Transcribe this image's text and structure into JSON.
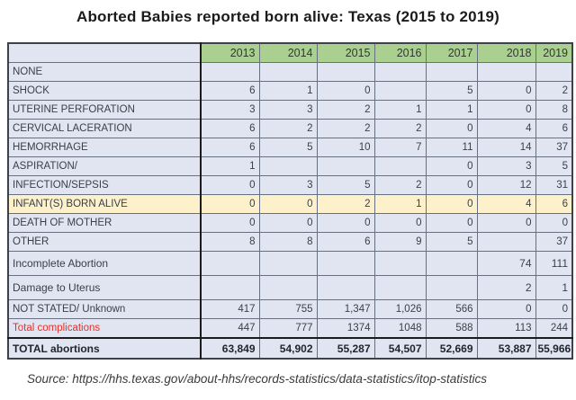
{
  "title": "Aborted Babies reported born alive: Texas (2015 to 2019)",
  "source_line": "Source: https://hhs.texas.gov/about-hhs/records-statistics/data-statistics/itop-statistics",
  "colors": {
    "header_green": "#A9D08E",
    "row_lavender": "#E0E5F1",
    "highlight_cream": "#FCF1CB",
    "red_text": "#E8302A",
    "border_dark": "#1C1C1C",
    "cell_border": "#667080"
  },
  "chart_data": {
    "type": "table",
    "title": "Aborted Babies reported born alive: Texas (2015 to 2019)",
    "columns": [
      "",
      "2013",
      "2014",
      "2015",
      "2016",
      "2017",
      "2018",
      "2019"
    ],
    "rows": [
      {
        "label": "NONE",
        "values": [
          "",
          "",
          "",
          "",
          "",
          "",
          ""
        ],
        "style": ""
      },
      {
        "label": "SHOCK",
        "values": [
          "6",
          "1",
          "0",
          "",
          "5",
          "0",
          "2"
        ],
        "style": ""
      },
      {
        "label": "UTERINE PERFORATION",
        "values": [
          "3",
          "3",
          "2",
          "1",
          "1",
          "0",
          "8"
        ],
        "style": ""
      },
      {
        "label": "CERVICAL LACERATION",
        "values": [
          "6",
          "2",
          "2",
          "2",
          "0",
          "4",
          "6"
        ],
        "style": ""
      },
      {
        "label": "HEMORRHAGE",
        "values": [
          "6",
          "5",
          "10",
          "7",
          "11",
          "14",
          "37"
        ],
        "style": ""
      },
      {
        "label": "ASPIRATION/",
        "values": [
          "1",
          "",
          "",
          "",
          "0",
          "3",
          "5"
        ],
        "style": ""
      },
      {
        "label": "INFECTION/SEPSIS",
        "values": [
          "0",
          "3",
          "5",
          "2",
          "0",
          "12",
          "31"
        ],
        "style": ""
      },
      {
        "label": "INFANT(S) BORN ALIVE",
        "values": [
          "0",
          "0",
          "2",
          "1",
          "0",
          "4",
          "6"
        ],
        "style": "highlight"
      },
      {
        "label": "DEATH OF MOTHER",
        "values": [
          "0",
          "0",
          "0",
          "0",
          "0",
          "0",
          "0"
        ],
        "style": ""
      },
      {
        "label": "OTHER",
        "values": [
          "8",
          "8",
          "6",
          "9",
          "5",
          "",
          "37"
        ],
        "style": ""
      },
      {
        "label": "Incomplete Abortion",
        "values": [
          "",
          "",
          "",
          "",
          "",
          "74",
          "111"
        ],
        "style": "tall"
      },
      {
        "label": "Damage to Uterus",
        "values": [
          "",
          "",
          "",
          "",
          "",
          "2",
          "1"
        ],
        "style": "tall"
      },
      {
        "label": "NOT STATED/ Unknown",
        "values": [
          "417",
          "755",
          "1,347",
          "1,026",
          "566",
          "0",
          "0"
        ],
        "style": ""
      },
      {
        "label": "Total complications",
        "values": [
          "447",
          "777",
          "1374",
          "1048",
          "588",
          "113",
          "244"
        ],
        "style": "red-label"
      },
      {
        "label": "TOTAL abortions",
        "values": [
          "63,849",
          "54,902",
          "55,287",
          "54,507",
          "52,669",
          "53,887",
          "55,966"
        ],
        "style": "total"
      }
    ]
  }
}
